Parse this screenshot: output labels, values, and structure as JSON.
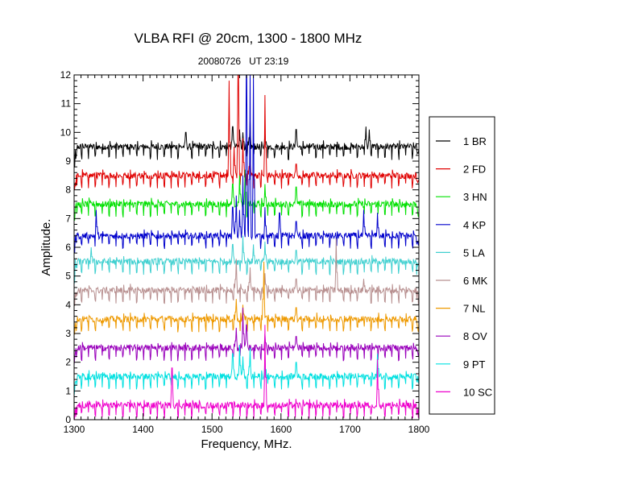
{
  "chart_data": {
    "type": "line",
    "title": "VLBA RFI @ 20cm, 1300 - 1800 MHz",
    "subtitle": "20080726   UT 23:19",
    "xlabel": "Frequency, MHz.",
    "ylabel": "Amplitude.",
    "xlim": [
      1300,
      1800
    ],
    "ylim": [
      0,
      12
    ],
    "xticks": [
      1300,
      1400,
      1500,
      1600,
      1700,
      1800
    ],
    "yticks": [
      0,
      1,
      2,
      3,
      4,
      5,
      6,
      7,
      8,
      9,
      10,
      11,
      12
    ],
    "grid": false,
    "legend_position": "right",
    "series": [
      {
        "name": "1 BR",
        "color": "#000000",
        "baseline": 9.5,
        "spikes": [
          [
            1462,
            10.0
          ],
          [
            1530,
            10.2
          ],
          [
            1540,
            10.1
          ],
          [
            1545,
            10.0
          ],
          [
            1555,
            10.4
          ],
          [
            1577,
            10.0
          ],
          [
            1622,
            10.1
          ],
          [
            1723,
            10.2
          ],
          [
            1728,
            10.1
          ]
        ]
      },
      {
        "name": "2 FD",
        "color": "#e00000",
        "baseline": 8.5,
        "spikes": [
          [
            1525,
            11.8
          ],
          [
            1532,
            9.5
          ],
          [
            1538,
            12.0
          ],
          [
            1545,
            9.8
          ],
          [
            1555,
            9.4
          ],
          [
            1577,
            11.3
          ],
          [
            1622,
            8.9
          ]
        ]
      },
      {
        "name": "3 HN",
        "color": "#00e000",
        "baseline": 7.5,
        "spikes": [
          [
            1530,
            8.2
          ],
          [
            1540,
            8.5
          ],
          [
            1548,
            8.7
          ],
          [
            1577,
            8.2
          ],
          [
            1622,
            8.1
          ]
        ]
      },
      {
        "name": "4 KP",
        "color": "#0000cc",
        "baseline": 6.4,
        "spikes": [
          [
            1332,
            7.3
          ],
          [
            1530,
            7.4
          ],
          [
            1535,
            7.8
          ],
          [
            1540,
            7.3
          ],
          [
            1545,
            8.5
          ],
          [
            1550,
            12.0
          ],
          [
            1555,
            12.0
          ],
          [
            1560,
            12.0
          ],
          [
            1577,
            7.4
          ],
          [
            1598,
            7.2
          ],
          [
            1622,
            6.9
          ],
          [
            1720,
            7.3
          ],
          [
            1740,
            7.2
          ]
        ]
      },
      {
        "name": "5 LA",
        "color": "#40d0d0",
        "baseline": 5.5,
        "spikes": [
          [
            1325,
            6.0
          ],
          [
            1530,
            6.1
          ],
          [
            1545,
            6.4
          ],
          [
            1560,
            6.1
          ],
          [
            1577,
            6.2
          ],
          [
            1622,
            5.9
          ]
        ]
      },
      {
        "name": "6 MK",
        "color": "#b89090",
        "baseline": 4.5,
        "spikes": [
          [
            1535,
            5.6
          ],
          [
            1555,
            5.3
          ],
          [
            1577,
            5.1
          ],
          [
            1622,
            4.9
          ],
          [
            1680,
            6.3
          ],
          [
            1720,
            4.9
          ]
        ]
      },
      {
        "name": "7 NL",
        "color": "#ee9900",
        "baseline": 3.5,
        "spikes": [
          [
            1535,
            4.2
          ],
          [
            1545,
            4.0
          ],
          [
            1575,
            5.5
          ],
          [
            1622,
            3.9
          ]
        ]
      },
      {
        "name": "8 OV",
        "color": "#9900bb",
        "baseline": 2.5,
        "spikes": [
          [
            1535,
            3.2
          ],
          [
            1545,
            3.9
          ],
          [
            1550,
            3.3
          ],
          [
            1577,
            3.0
          ],
          [
            1622,
            2.9
          ]
        ]
      },
      {
        "name": "9 PT",
        "color": "#00e0e0",
        "baseline": 1.5,
        "spikes": [
          [
            1530,
            2.3
          ],
          [
            1540,
            2.6
          ],
          [
            1545,
            2.2
          ],
          [
            1555,
            2.5
          ],
          [
            1577,
            2.2
          ],
          [
            1622,
            2.0
          ],
          [
            1740,
            2.3
          ]
        ]
      },
      {
        "name": "10 SC",
        "color": "#ee00cc",
        "baseline": 0.5,
        "spikes": [
          [
            1442,
            1.8
          ],
          [
            1577,
            3.3
          ],
          [
            1740,
            2.1
          ]
        ]
      }
    ]
  }
}
